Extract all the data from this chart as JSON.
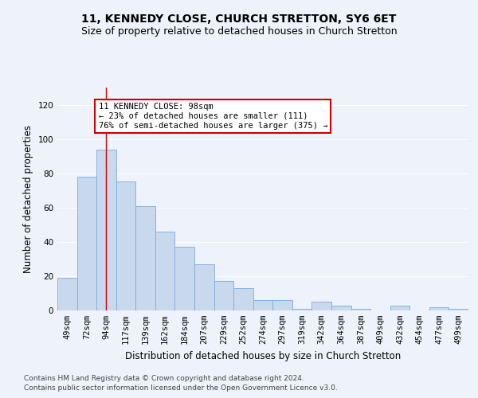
{
  "title": "11, KENNEDY CLOSE, CHURCH STRETTON, SY6 6ET",
  "subtitle": "Size of property relative to detached houses in Church Stretton",
  "xlabel": "Distribution of detached houses by size in Church Stretton",
  "ylabel": "Number of detached properties",
  "categories": [
    "49sqm",
    "72sqm",
    "94sqm",
    "117sqm",
    "139sqm",
    "162sqm",
    "184sqm",
    "207sqm",
    "229sqm",
    "252sqm",
    "274sqm",
    "297sqm",
    "319sqm",
    "342sqm",
    "364sqm",
    "387sqm",
    "409sqm",
    "432sqm",
    "454sqm",
    "477sqm",
    "499sqm"
  ],
  "values": [
    19,
    78,
    94,
    75,
    61,
    46,
    37,
    27,
    17,
    13,
    6,
    6,
    1,
    5,
    3,
    1,
    0,
    3,
    0,
    2,
    1
  ],
  "bar_color": "#c9d9ed",
  "bar_edge_color": "#7aabe0",
  "highlight_bar_index": 2,
  "highlight_line_color": "#cc0000",
  "ylim": [
    0,
    130
  ],
  "yticks": [
    0,
    20,
    40,
    60,
    80,
    100,
    120
  ],
  "annotation_text": "11 KENNEDY CLOSE: 98sqm\n← 23% of detached houses are smaller (111)\n76% of semi-detached houses are larger (375) →",
  "annotation_box_color": "#ffffff",
  "annotation_box_edge_color": "#cc0000",
  "footer_line1": "Contains HM Land Registry data © Crown copyright and database right 2024.",
  "footer_line2": "Contains public sector information licensed under the Open Government Licence v3.0.",
  "background_color": "#eef2fa",
  "plot_bg_color": "#eef2fa",
  "grid_color": "#ffffff",
  "title_fontsize": 10,
  "subtitle_fontsize": 9,
  "axis_label_fontsize": 8.5,
  "tick_fontsize": 7.5,
  "annotation_fontsize": 7.5,
  "footer_fontsize": 6.5
}
